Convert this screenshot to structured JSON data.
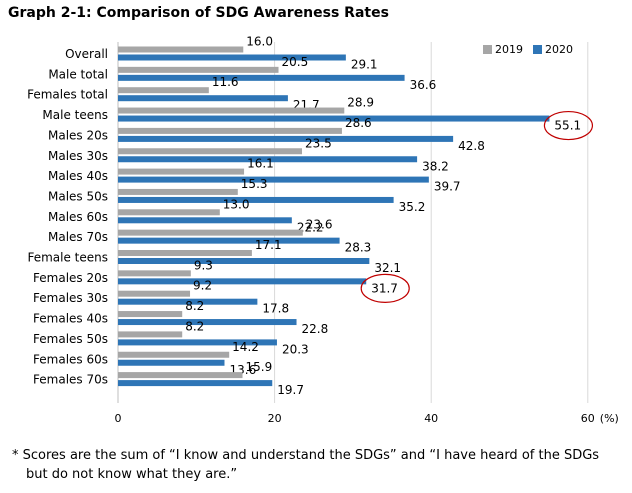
{
  "chart_data": {
    "type": "bar",
    "orientation": "horizontal",
    "title": "Graph 2-1: Comparison of SDG Awareness Rates",
    "categories": [
      "Overall",
      "Male total",
      "Females total",
      "Male teens",
      "Males 20s",
      "Males 30s",
      "Males 40s",
      "Males 50s",
      "Males 60s",
      "Males 70s",
      "Female teens",
      "Females 20s",
      "Females 30s",
      "Females 40s",
      "Females 50s",
      "Females 60s",
      "Females 70s"
    ],
    "series": [
      {
        "name": "2019",
        "color": "#a6a6a6",
        "values": [
          16.0,
          20.5,
          11.6,
          28.9,
          28.6,
          23.5,
          16.1,
          15.3,
          13.0,
          23.6,
          17.1,
          9.3,
          9.2,
          8.2,
          8.2,
          14.2,
          15.9
        ]
      },
      {
        "name": "2020",
        "color": "#2e75b6",
        "values": [
          29.1,
          36.6,
          21.7,
          55.1,
          42.8,
          38.2,
          39.7,
          35.2,
          22.2,
          28.3,
          32.1,
          31.7,
          17.8,
          22.8,
          20.3,
          13.6,
          19.7
        ]
      }
    ],
    "value_labels": {
      "2019": [
        "16.0",
        "20.5",
        "11.6",
        "28.9",
        "28.6",
        "23.5",
        "16.1",
        "15.3",
        "13.0",
        "23.6",
        "17.1",
        "9.3",
        "9.2",
        "8.2",
        "8.2",
        "14.2",
        "15.9"
      ],
      "2020": [
        "29.1",
        "36.6",
        "21.7",
        "55.1",
        "42.8",
        "38.2",
        "39.7",
        "35.2",
        "22.2",
        "28.3",
        "32.1",
        "31.7",
        "17.8",
        "22.8",
        "20.3",
        "13.6",
        "19.7"
      ]
    },
    "xlim": [
      0,
      60
    ],
    "xticks": [
      0,
      20,
      40,
      60
    ],
    "xtick_labels": [
      "0",
      "20",
      "40",
      "60"
    ],
    "xunit": "(%)",
    "grid": true,
    "legend_position": "top-right",
    "highlighted": [
      {
        "category": "Male teens",
        "series": "2020"
      },
      {
        "category": "Females 20s",
        "series": "2020"
      }
    ],
    "highlight_color": "#c00000"
  },
  "footnote": {
    "line1": "* Scores are the sum of “I know and understand the SDGs” and “I have heard of the SDGs",
    "line2": "but do not know what they are.”"
  }
}
